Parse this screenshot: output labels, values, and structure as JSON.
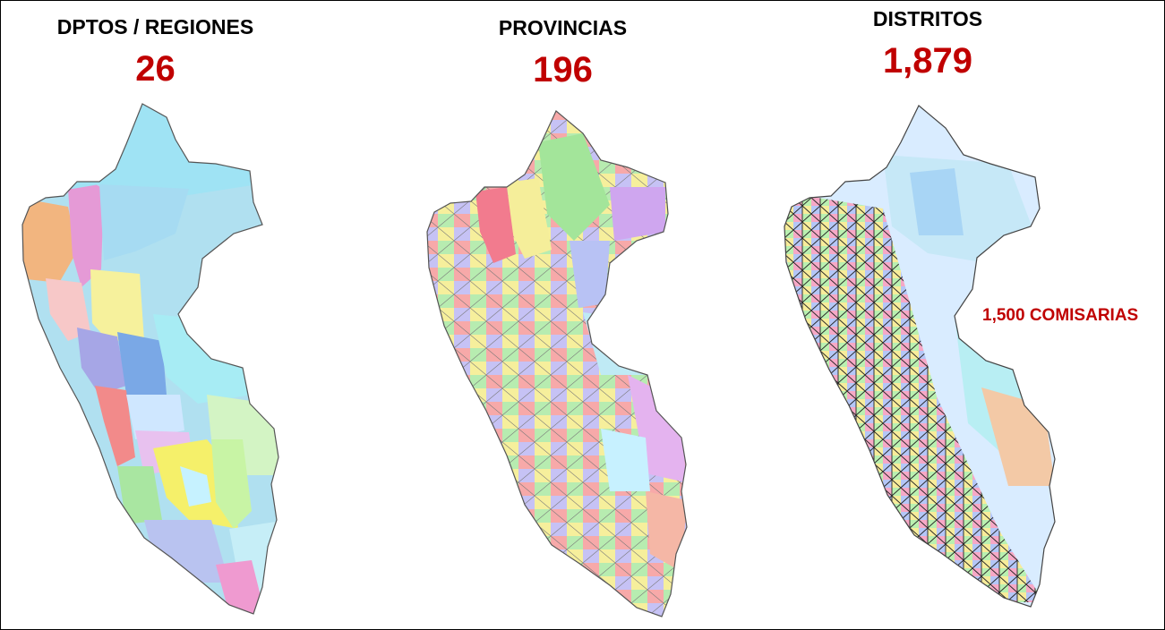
{
  "panels": [
    {
      "title": "DPTOS / REGIONES",
      "count": "26"
    },
    {
      "title": "PROVINCIAS",
      "count": "196"
    },
    {
      "title": "DISTRITOS",
      "count": "1,879"
    }
  ],
  "annotation": "1,500 COMISARIAS",
  "colors": {
    "count_red": "#c00000",
    "map_fills": [
      "#9ee6f2",
      "#f5b08a",
      "#e79ad6",
      "#f7f19c",
      "#a7a6e6",
      "#7fb7e6",
      "#c9f5a3",
      "#f58a8a",
      "#a8e6a1",
      "#f6c7c7",
      "#d9f7ff",
      "#b9c9ff"
    ]
  }
}
